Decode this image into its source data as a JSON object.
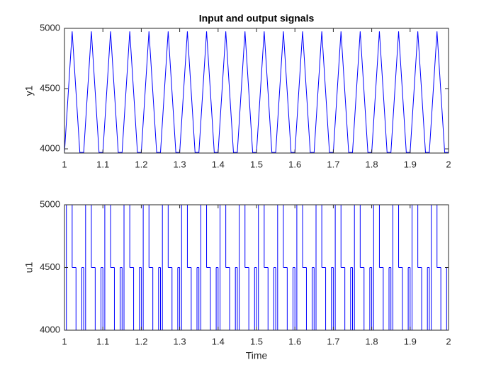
{
  "chart_data": [
    {
      "type": "line",
      "title": "Input and output signals",
      "ylabel": "y1",
      "color": "#0000ff",
      "x": [
        1,
        1.02,
        1.04,
        1.05,
        1.07,
        1.09,
        1.1,
        1.12,
        1.14,
        1.15,
        1.17,
        1.19,
        1.2,
        1.22,
        1.24,
        1.25,
        1.27,
        1.29,
        1.3,
        1.32,
        1.34,
        1.35,
        1.37,
        1.39,
        1.4,
        1.42,
        1.44,
        1.45,
        1.47,
        1.49,
        1.5,
        1.52,
        1.54,
        1.55,
        1.57,
        1.59,
        1.6,
        1.62,
        1.64,
        1.65,
        1.67,
        1.69,
        1.7,
        1.72,
        1.74,
        1.75,
        1.77,
        1.79,
        1.8,
        1.82,
        1.84,
        1.85,
        1.87,
        1.89,
        1.9,
        1.92,
        1.94,
        1.95,
        1.97,
        1.99,
        2
      ],
      "values": [
        3970,
        4975,
        3970,
        3970,
        4975,
        3970,
        3970,
        4975,
        3970,
        3970,
        4975,
        3970,
        3970,
        4975,
        3970,
        3970,
        4975,
        3970,
        3970,
        4975,
        3970,
        3970,
        4975,
        3970,
        3970,
        4975,
        3970,
        3970,
        4975,
        3970,
        3970,
        4975,
        3970,
        3970,
        4975,
        3970,
        3970,
        4975,
        3970,
        3970,
        4975,
        3970,
        3970,
        4975,
        3970,
        3970,
        4975,
        3970,
        3970,
        4975,
        3970,
        3970,
        4975,
        3970,
        3970,
        4975,
        3970,
        3970,
        4975,
        3970,
        3970
      ],
      "xlim": [
        1,
        2
      ],
      "xticks": [
        1,
        1.1,
        1.2,
        1.3,
        1.4,
        1.5,
        1.6,
        1.7,
        1.8,
        1.9,
        2
      ],
      "ylim": [
        3965,
        5000
      ],
      "yticks": [
        4000,
        4500,
        5000
      ]
    },
    {
      "type": "stairs",
      "xlabel": "Time",
      "ylabel": "u1",
      "color": "#0000ff",
      "x": [
        1,
        1.005,
        1.02,
        1.03,
        1.045,
        1.05,
        1.055,
        1.07,
        1.08,
        1.095,
        1.1,
        1.105,
        1.12,
        1.13,
        1.145,
        1.15,
        1.155,
        1.17,
        1.18,
        1.195,
        1.2,
        1.205,
        1.22,
        1.23,
        1.245,
        1.25,
        1.255,
        1.27,
        1.28,
        1.295,
        1.3,
        1.305,
        1.32,
        1.33,
        1.345,
        1.35,
        1.355,
        1.37,
        1.38,
        1.395,
        1.4,
        1.405,
        1.42,
        1.43,
        1.445,
        1.45,
        1.455,
        1.47,
        1.48,
        1.495,
        1.5,
        1.505,
        1.52,
        1.53,
        1.545,
        1.55,
        1.555,
        1.57,
        1.58,
        1.595,
        1.6,
        1.605,
        1.62,
        1.63,
        1.645,
        1.65,
        1.655,
        1.67,
        1.68,
        1.695,
        1.7,
        1.705,
        1.72,
        1.73,
        1.745,
        1.75,
        1.755,
        1.77,
        1.78,
        1.795,
        1.8,
        1.805,
        1.82,
        1.83,
        1.845,
        1.85,
        1.855,
        1.87,
        1.88,
        1.895,
        1.9,
        1.905,
        1.92,
        1.93,
        1.945,
        1.95,
        1.955,
        1.97,
        1.98,
        1.995
      ],
      "values": [
        4000,
        5000,
        4500,
        4000,
        4500,
        4000,
        5000,
        4500,
        4000,
        4500,
        4000,
        5000,
        4500,
        4000,
        4500,
        4000,
        5000,
        4500,
        4000,
        4500,
        4000,
        5000,
        4500,
        4000,
        4500,
        4000,
        5000,
        4500,
        4000,
        4500,
        4000,
        5000,
        4500,
        4000,
        4500,
        4000,
        5000,
        4500,
        4000,
        4500,
        4000,
        5000,
        4500,
        4000,
        4500,
        4000,
        5000,
        4500,
        4000,
        4500,
        4000,
        5000,
        4500,
        4000,
        4500,
        4000,
        5000,
        4500,
        4000,
        4500,
        4000,
        5000,
        4500,
        4000,
        4500,
        4000,
        5000,
        4500,
        4000,
        4500,
        4000,
        5000,
        4500,
        4000,
        4500,
        4000,
        5000,
        4500,
        4000,
        4500,
        4000,
        5000,
        4500,
        4000,
        4500,
        4000,
        5000,
        4500,
        4000,
        4500,
        4000,
        5000,
        4500,
        4000,
        4500,
        4000,
        5000,
        4500,
        4000,
        4500
      ],
      "xlim": [
        1,
        2
      ],
      "xticks": [
        1,
        1.1,
        1.2,
        1.3,
        1.4,
        1.5,
        1.6,
        1.7,
        1.8,
        1.9,
        2
      ],
      "ylim": [
        4000,
        5000
      ],
      "yticks": [
        4000,
        4500,
        5000
      ]
    }
  ]
}
